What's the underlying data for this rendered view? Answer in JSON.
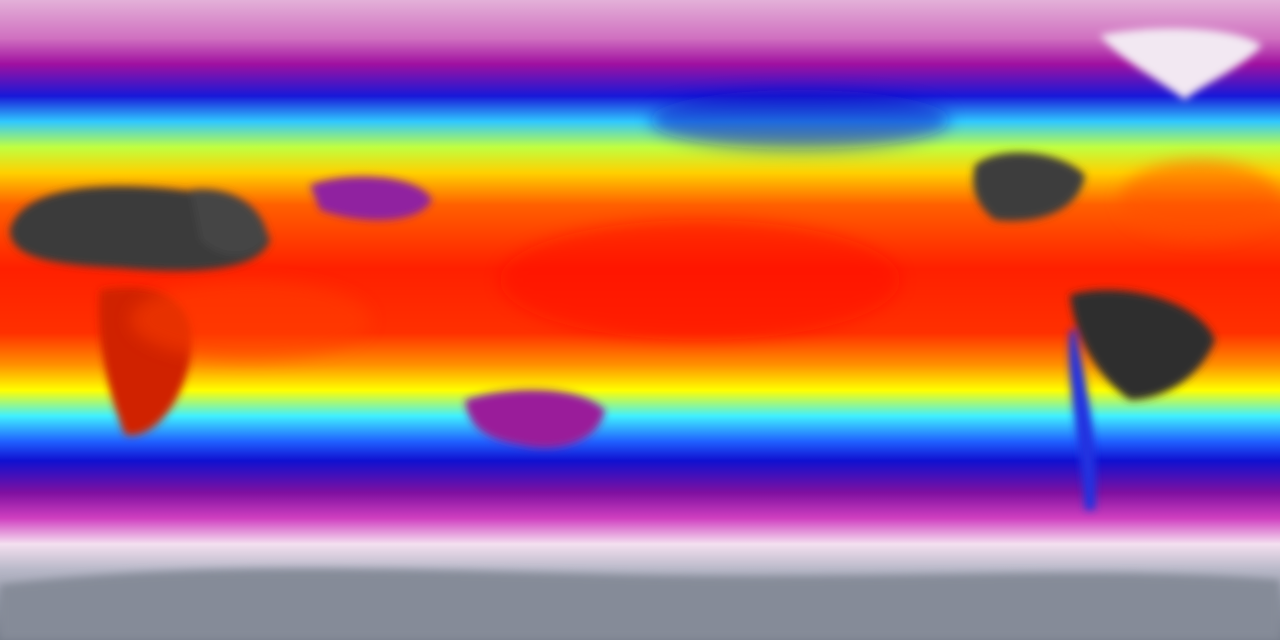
{
  "map": {
    "projection": "equirectangular",
    "colormap": [
      "#8a8f99",
      "#f2e6f2",
      "#c020b0",
      "#1010e0",
      "#20e0ff",
      "#ffff00",
      "#ff8000",
      "#ff1a00",
      "#3a3a3a"
    ],
    "colors": {
      "polar_cold": "#8a8f99",
      "snow_white": "#f2e6f2",
      "magenta": "#c020b0",
      "blue": "#1010e0",
      "cyan": "#20e0ff",
      "yellow": "#ffff00",
      "orange": "#ff8000",
      "red": "#ff1a00",
      "hot_land": "#3a3a3a"
    }
  }
}
